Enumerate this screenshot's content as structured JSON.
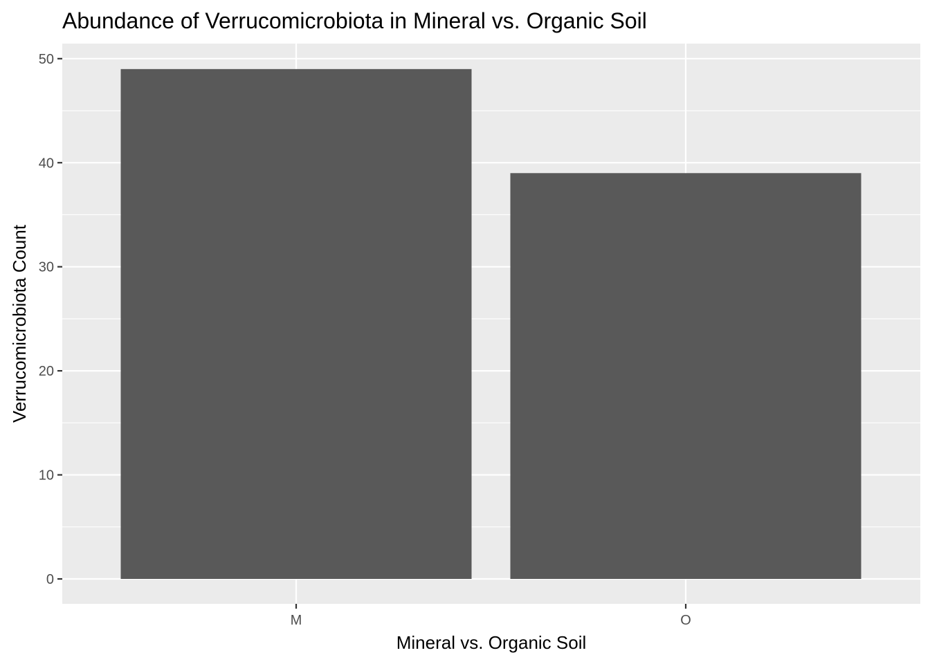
{
  "chart_data": {
    "type": "bar",
    "title": "Abundance of Verrucomicrobiota in Mineral vs. Organic Soil",
    "xlabel": "Mineral vs. Organic Soil",
    "ylabel": "Verrucomicrobiota Count",
    "categories": [
      "M",
      "O"
    ],
    "values": [
      49,
      39
    ],
    "ylim": [
      0,
      51.45
    ],
    "yticks": [
      0,
      10,
      20,
      30,
      40,
      50
    ],
    "grid": true,
    "legend": "none",
    "colors": {
      "bar": "#595959",
      "panel_background": "#ebebeb",
      "grid": "#ffffff",
      "tick_text": "#4d4d4d",
      "tick_mark": "#333333"
    }
  }
}
